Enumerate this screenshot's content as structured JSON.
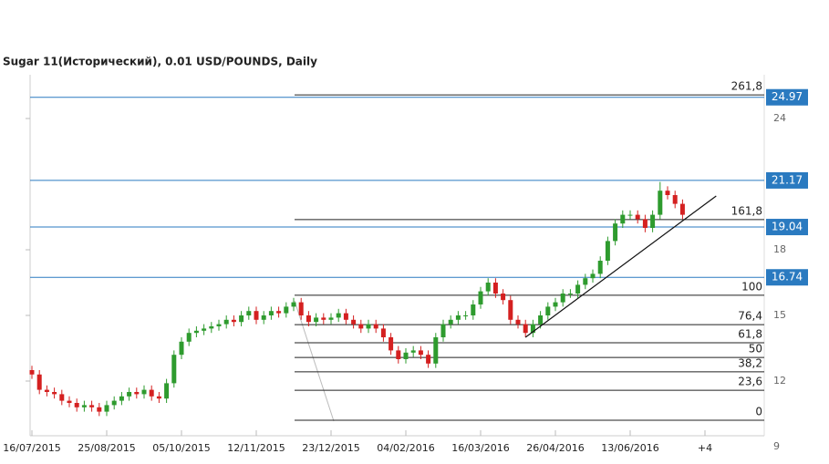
{
  "chart_data": {
    "type": "candlestick",
    "title": "Sugar 11(Исторический), 0.01 USD/POUNDS, Daily",
    "categories": [
      "16/07/2015",
      null,
      null,
      null,
      null,
      null,
      null,
      null,
      null,
      null,
      "25/08/2015",
      null,
      null,
      null,
      null,
      null,
      null,
      null,
      null,
      null,
      "05/10/2015",
      null,
      null,
      null,
      null,
      null,
      null,
      null,
      null,
      null,
      "12/11/2015",
      null,
      null,
      null,
      null,
      null,
      null,
      null,
      null,
      null,
      "23/12/2015",
      null,
      null,
      null,
      null,
      null,
      null,
      null,
      null,
      null,
      "04/02/2016",
      null,
      null,
      null,
      null,
      null,
      null,
      null,
      null,
      null,
      "16/03/2016",
      null,
      null,
      null,
      null,
      null,
      null,
      null,
      null,
      null,
      "26/04/2016",
      null,
      null,
      null,
      null,
      null,
      null,
      null,
      null,
      null,
      "13/06/2016",
      null,
      null,
      null,
      null,
      null,
      null,
      null,
      null,
      null,
      "+4"
    ],
    "open": [
      12.5,
      12.3,
      11.6,
      11.5,
      11.4,
      11.1,
      11.0,
      10.8,
      10.9,
      10.8,
      10.6,
      10.9,
      11.1,
      11.3,
      11.5,
      11.4,
      11.6,
      11.3,
      11.2,
      11.9,
      13.2,
      13.8,
      14.2,
      14.3,
      14.4,
      14.5,
      14.6,
      14.8,
      14.7,
      15.0,
      15.2,
      14.8,
      15.0,
      15.2,
      15.1,
      15.4,
      15.6,
      15.0,
      14.7,
      14.9,
      14.8,
      14.9,
      15.1,
      14.8,
      14.6,
      14.4,
      14.6,
      14.4,
      14.0,
      13.4,
      13.0,
      13.3,
      13.4,
      13.2,
      12.8,
      14.0,
      14.6,
      14.8,
      15.0,
      15.0,
      15.5,
      16.1,
      16.5,
      16.0,
      15.7,
      14.8,
      14.6,
      14.2,
      14.6,
      15.0,
      15.4,
      15.6,
      16.0,
      16.0,
      16.4,
      16.7,
      16.9,
      17.5,
      18.4,
      19.2,
      19.6,
      19.6,
      19.4,
      19.0,
      19.6,
      20.7,
      20.5,
      20.1,
      null,
      null,
      null
    ],
    "high": [
      12.7,
      12.5,
      11.8,
      11.7,
      11.6,
      11.3,
      11.2,
      11.1,
      11.1,
      11.0,
      11.1,
      11.3,
      11.5,
      11.7,
      11.7,
      11.8,
      11.8,
      11.5,
      12.1,
      13.4,
      14.0,
      14.4,
      14.5,
      14.6,
      14.7,
      14.8,
      15.0,
      15.0,
      15.2,
      15.4,
      15.4,
      15.2,
      15.4,
      15.4,
      15.6,
      15.8,
      15.8,
      15.2,
      15.1,
      15.1,
      15.1,
      15.3,
      15.3,
      15.0,
      14.8,
      14.8,
      14.8,
      14.6,
      14.2,
      13.6,
      13.5,
      13.6,
      13.6,
      13.4,
      14.2,
      14.8,
      15.0,
      15.2,
      15.2,
      15.7,
      16.3,
      16.7,
      16.7,
      16.2,
      15.9,
      15.0,
      14.8,
      14.8,
      15.2,
      15.6,
      15.8,
      16.2,
      16.2,
      16.6,
      16.9,
      17.1,
      17.7,
      18.6,
      19.4,
      19.8,
      19.8,
      19.8,
      19.6,
      19.8,
      21.1,
      20.9,
      20.7,
      20.3,
      null,
      null,
      null
    ],
    "low": [
      12.1,
      11.4,
      11.3,
      11.2,
      10.9,
      10.8,
      10.6,
      10.6,
      10.6,
      10.4,
      10.4,
      10.7,
      10.9,
      11.1,
      11.2,
      11.2,
      11.1,
      11.0,
      11.0,
      11.7,
      13.0,
      13.6,
      14.0,
      14.1,
      14.2,
      14.3,
      14.4,
      14.5,
      14.5,
      14.8,
      14.6,
      14.6,
      14.8,
      14.9,
      14.9,
      15.2,
      14.8,
      14.5,
      14.5,
      14.6,
      14.6,
      14.7,
      14.6,
      14.4,
      14.2,
      14.2,
      14.2,
      13.8,
      13.2,
      12.8,
      12.8,
      13.1,
      13.0,
      12.6,
      12.6,
      13.8,
      14.4,
      14.6,
      14.8,
      14.8,
      15.3,
      15.9,
      15.8,
      15.5,
      14.6,
      14.4,
      14.0,
      14.0,
      14.4,
      14.8,
      15.2,
      15.4,
      15.8,
      15.8,
      16.2,
      16.5,
      16.7,
      17.3,
      18.2,
      19.0,
      19.4,
      19.2,
      18.8,
      18.8,
      19.4,
      20.3,
      19.9,
      19.4,
      null,
      null,
      null
    ],
    "close": [
      12.3,
      11.6,
      11.5,
      11.4,
      11.1,
      11.0,
      10.8,
      10.9,
      10.8,
      10.6,
      10.9,
      11.1,
      11.3,
      11.5,
      11.4,
      11.6,
      11.3,
      11.2,
      11.9,
      13.2,
      13.8,
      14.2,
      14.3,
      14.4,
      14.5,
      14.6,
      14.8,
      14.7,
      15.0,
      15.2,
      14.8,
      15.0,
      15.2,
      15.1,
      15.4,
      15.6,
      15.0,
      14.7,
      14.9,
      14.8,
      14.9,
      15.1,
      14.8,
      14.6,
      14.4,
      14.6,
      14.4,
      14.0,
      13.4,
      13.0,
      13.3,
      13.4,
      13.2,
      12.8,
      14.0,
      14.6,
      14.8,
      15.0,
      15.0,
      15.5,
      16.1,
      16.5,
      16.0,
      15.7,
      14.8,
      14.6,
      14.2,
      14.6,
      15.0,
      15.4,
      15.6,
      16.0,
      16.0,
      16.4,
      16.7,
      16.9,
      17.5,
      18.4,
      19.2,
      19.6,
      19.6,
      19.4,
      19.0,
      19.6,
      20.7,
      20.5,
      20.1,
      19.6,
      null,
      null,
      null
    ],
    "up_color": "#2e9b2e",
    "down_color": "#d42020",
    "ylim": [
      9,
      26
    ],
    "yticks": [
      24,
      18,
      15,
      12,
      9
    ],
    "price_levels": {
      "color": "#2a7ac0",
      "values": [
        24.97,
        21.17,
        19.04,
        16.74
      ]
    },
    "fibonacci": [
      {
        "value": 25.08,
        "label": "261,8"
      },
      {
        "value": 19.38,
        "label": "161,8"
      },
      {
        "value": 15.92,
        "label": "100"
      },
      {
        "value": 14.58,
        "label": "76,4"
      },
      {
        "value": 13.75,
        "label": "61,8"
      },
      {
        "value": 13.08,
        "label": "50"
      },
      {
        "value": 12.42,
        "label": "38,2"
      },
      {
        "value": 11.58,
        "label": "23,6"
      },
      {
        "value": 10.21,
        "label": "0"
      }
    ],
    "trendline": {
      "x": [
        66,
        91.5
      ],
      "y": [
        14.0,
        20.46
      ]
    }
  }
}
